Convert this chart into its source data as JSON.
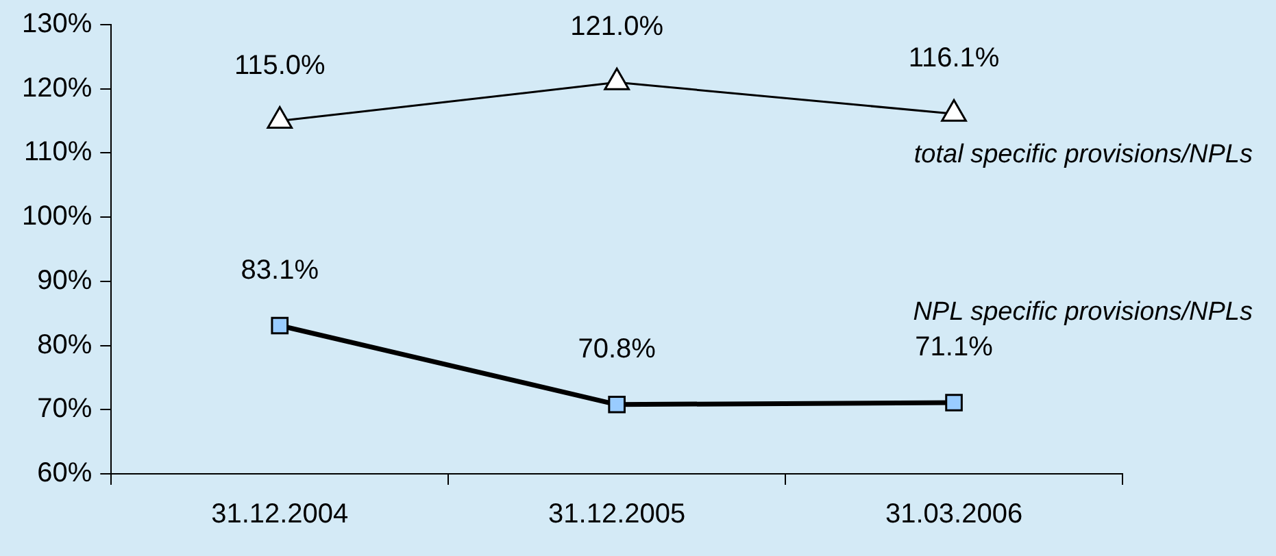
{
  "chart_data": {
    "type": "line",
    "categories": [
      "31.12.2004",
      "31.12.2005",
      "31.03.2006"
    ],
    "series": [
      {
        "name": "total specific provisions/NPLs",
        "color": "#000000",
        "marker": "triangle",
        "values": [
          115.0,
          121.0,
          116.1
        ],
        "value_labels": [
          "115.0%",
          "121.0%",
          "116.1%"
        ]
      },
      {
        "name": "NPL specific provisions/NPLs",
        "color": "#000000",
        "marker": "square",
        "values": [
          83.1,
          70.8,
          71.1
        ],
        "value_labels": [
          "83.1%",
          "70.8%",
          "71.1%"
        ]
      }
    ],
    "ylim": [
      60,
      130
    ],
    "yticks": [
      {
        "value": 60,
        "label": "60%"
      },
      {
        "value": 70,
        "label": "70%"
      },
      {
        "value": 80,
        "label": "80%"
      },
      {
        "value": 90,
        "label": "90%"
      },
      {
        "value": 100,
        "label": "100%"
      },
      {
        "value": 110,
        "label": "110%"
      },
      {
        "value": 120,
        "label": "120%"
      },
      {
        "value": 130,
        "label": "130%"
      }
    ],
    "grid": false,
    "legend": false
  }
}
